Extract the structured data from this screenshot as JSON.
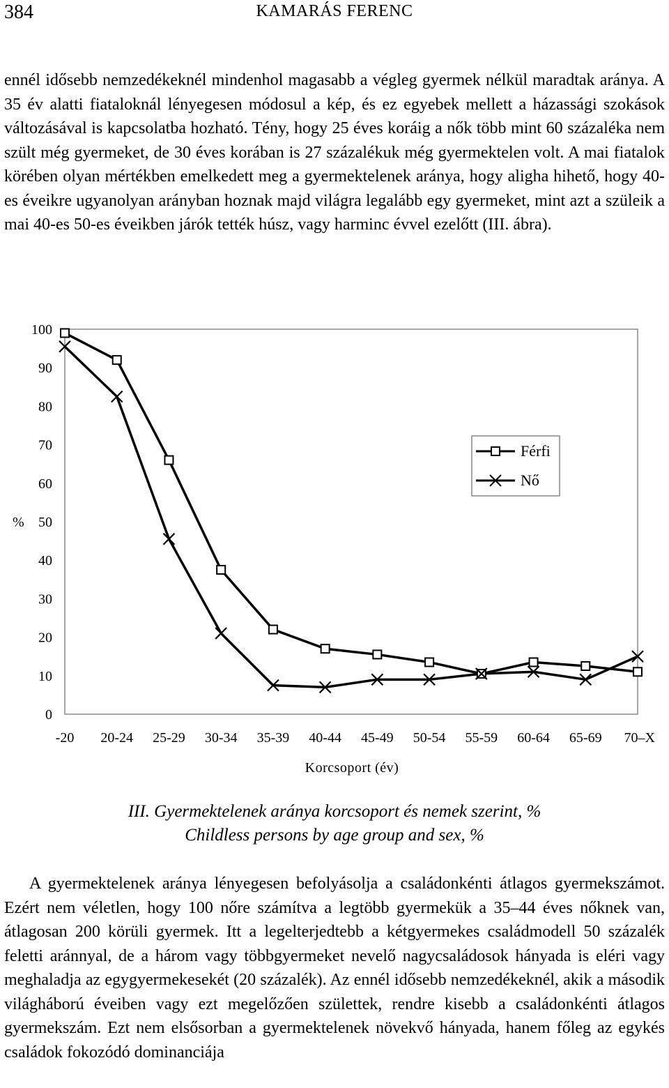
{
  "header": {
    "page_number": "384",
    "running_head": "KAMARÁS FERENC"
  },
  "paragraph1": "ennél idősebb nemzedékeknél mindenhol magasabb a végleg gyermek nélkül maradtak aránya. A 35 év alatti fiataloknál lényegesen módosul a kép, és ez egyebek mellett a házassági szokások változásával is kapcsolatba hozható. Tény, hogy 25 éves koráig a nők több mint 60 százaléka nem szült még gyermeket, de 30 éves korában is 27 százalékuk még gyermektelen volt. A mai fiatalok körében olyan mértékben emelkedett meg a gyermektelenek aránya, hogy aligha hihető, hogy 40-es éveikre ugyanolyan arányban hoznak majd világra legalább egy gyermeket, mint azt a szüleik a mai 40-es 50-es éveikben járók tették húsz, vagy harminc évvel ezelőtt (III. ábra).",
  "chart_data": {
    "type": "line",
    "title": "",
    "xlabel": "Korcsoport (év)",
    "ylabel": "%",
    "ylim": [
      0,
      100
    ],
    "yticks": [
      "0",
      "10",
      "20",
      "30",
      "40",
      "50",
      "60",
      "70",
      "80",
      "90",
      "100"
    ],
    "categories": [
      "-20",
      "20-24",
      "25-29",
      "30-34",
      "35-39",
      "40-44",
      "45-49",
      "50-54",
      "55-59",
      "60-64",
      "65-69",
      "70–X"
    ],
    "series": [
      {
        "name": "Férfi",
        "marker": "square",
        "values": [
          99,
          92,
          66,
          37.5,
          22,
          17,
          15.5,
          13.5,
          10.5,
          13.5,
          12.5,
          11
        ]
      },
      {
        "name": "Nő",
        "marker": "x",
        "values": [
          95.5,
          82.5,
          45.5,
          21,
          7.5,
          7,
          9,
          9,
          10.5,
          11,
          9,
          15
        ]
      }
    ],
    "legend": "right",
    "grid": false
  },
  "caption": {
    "line1": "III. Gyermektelenek aránya korcsoport és nemek szerint, %",
    "line2": "Childless persons by age group and sex, %"
  },
  "paragraph2": "A gyermektelenek aránya lényegesen befolyásolja a családonkénti átlagos gyermekszámot. Ezért nem véletlen, hogy 100 nőre számítva a legtöbb gyermekük a 35–44 éves nőknek van, átlagosan 200 körüli gyermek. Itt a legelterjedtebb a kétgyermekes családmodell 50 százalék feletti aránnyal, de a három vagy többgyermeket nevelő nagycsaládosok hányada is eléri vagy meghaladja az egygyermekesekét (20 százalék). Az ennél idősebb nemzedékeknél, akik a második világháború éveiben vagy ezt megelőzően születtek, rendre kisebb a családonkénti átlagos gyermekszám. Ezt nem elsősorban a gyermektelenek növekvő hányada, hanem főleg az egykés családok fokozódó dominanciája"
}
